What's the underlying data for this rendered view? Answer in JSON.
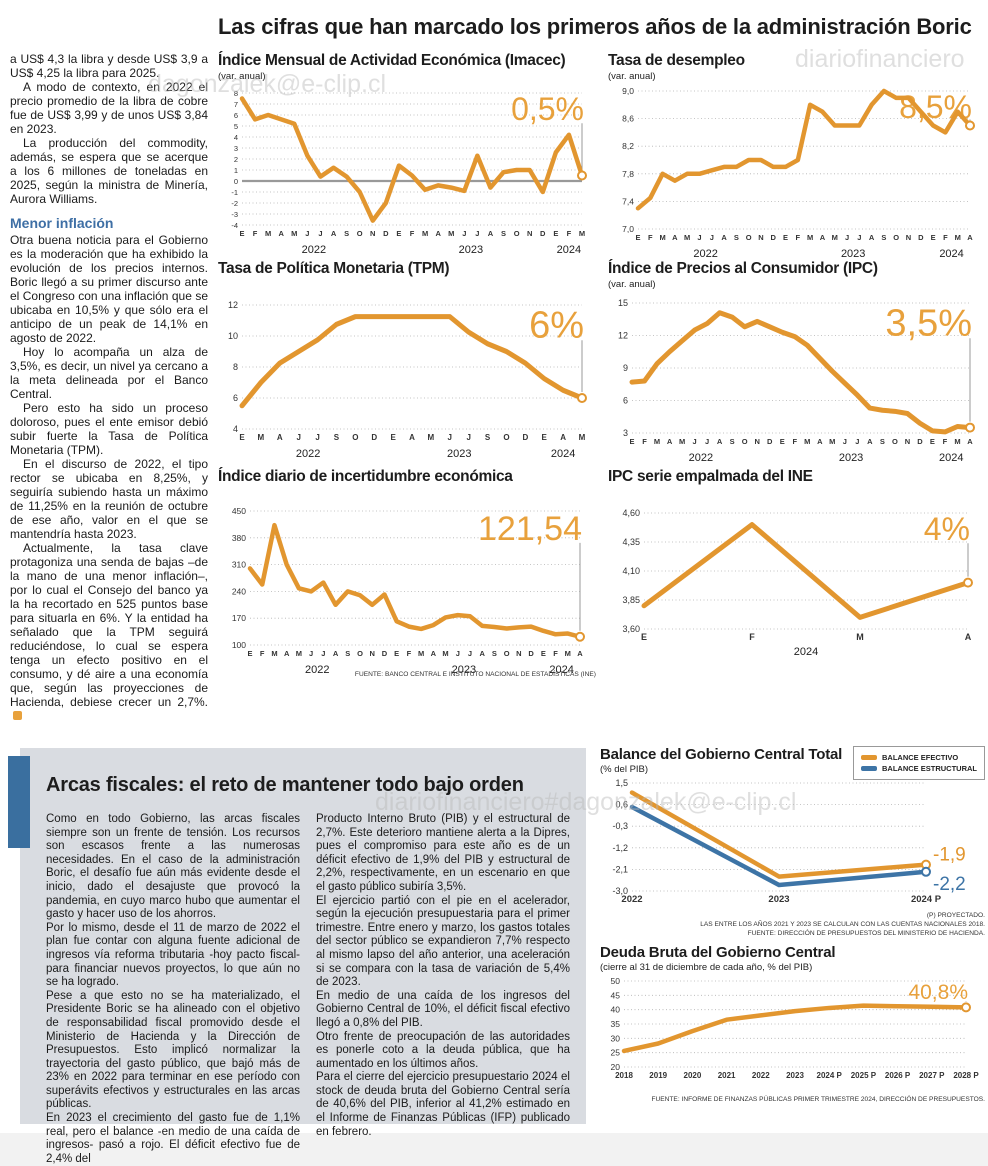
{
  "headline": "Las cifras que han marcado los primeros años de la administración Boric",
  "watermarks": {
    "wm1": "dagonzalek@e-clip.cl",
    "wm2": "diariofinanciero",
    "wm3": "diariofinanciero#dagonzalek@e-clip.cl"
  },
  "left_column": {
    "p1": "a US$ 4,3 la libra y desde US$ 3,9 a US$ 4,25 la libra para 2025.",
    "p2": "A modo de contexto, en 2022 el precio promedio de la libra de cobre fue de US$ 3,99 y de unos US$ 3,84 en 2023.",
    "p3": "La producción del commodity, además, se espera que se acerque a los 6 millones de toneladas en 2025, según la ministra de Minería, Aurora Williams.",
    "subhead": "Menor inflación",
    "p4": "Otra buena noticia para el Gobierno es la moderación que ha exhibido la evolución de los precios internos. Boric llegó a su primer discurso ante el Congreso con una inflación que se ubicaba en 10,5% y que sólo era el anticipo de un peak de 14,1% en agosto de 2022.",
    "p5": "Hoy lo acompaña un alza de 3,5%, es decir, un nivel ya cercano a la meta delineada por el Banco Central.",
    "p6": "Pero esto ha sido un proceso doloroso, pues el ente emisor debió subir fuerte la Tasa de Política Monetaria (TPM).",
    "p7": "En el discurso de 2022, el tipo rector se ubicaba en 8,25%, y seguiría subiendo hasta un máximo de 11,25% en la reunión de octubre de ese año, valor en el que se mantendría hasta 2023.",
    "p8": "Actualmente, la tasa clave protagoniza una senda de bajas –de la mano de una menor inflación–, por lo cual el Consejo del banco ya la ha recortado en 525 puntos base para situarla en 6%. Y la entidad ha señalado que la TPM seguirá reduciéndose, lo cual se espera tenga un efecto positivo en el consumo, y dé aire a una economía que, según las proyecciones de Hacienda, debiese crecer un 2,7%."
  },
  "sources": {
    "ine": "FUENTE: BANCO CENTRAL E INSTITUTO NACIONAL DE ESTADÍSTICAS (INE)"
  },
  "bottom": {
    "headline": "Arcas fiscales: el reto de mantener todo bajo orden",
    "col1": {
      "p1": "Como en todo Gobierno, las arcas fiscales siempre son un frente de tensión. Los recursos son escasos frente a las numerosas necesidades. En el caso de la administración Boric, el desafío fue aún más evidente desde el inicio, dado el desajuste que provocó la pandemia, en cuyo marco hubo que aumentar el gasto y hacer uso de los ahorros.",
      "p2": "Por lo mismo, desde el 11 de marzo de 2022 el plan fue contar con alguna fuente adicional de ingresos vía reforma tributaria -hoy pacto fiscal- para financiar nuevos proyectos, lo que aún no se ha logrado.",
      "p3": "Pese a que esto no se ha materializado, el Presidente Boric se ha alineado con el objetivo de responsabilidad fiscal promovido desde el Ministerio de Hacienda y la Dirección de Presupuestos. Esto implicó normalizar la trayectoria del gasto público, que bajó más de 23% en 2022 para terminar en ese período con superávits efectivos y estructurales en las arcas públicas.",
      "p4": "En 2023 el crecimiento del gasto fue de 1,1% real, pero el balance -en medio de una caída de ingresos-  pasó a rojo. El déficit efectivo fue de 2,4% del"
    },
    "col2": {
      "p1": "Producto Interno Bruto (PIB) y el estructural de 2,7%. Este deterioro mantiene alerta a la Dipres, pues el compromiso para este año es de un déficit efectivo de 1,9% del PIB y estructural de 2,2%, respectivamente, en un escenario en que el gasto público subiría 3,5%.",
      "p2": "El ejercicio partió con el pie en el acelerador, según la ejecución presupuestaria para el primer trimestre. Entre enero y marzo, los gastos totales del sector público se expandieron 7,7% respecto al mismo lapso del año anterior, una aceleración si se compara con la tasa de variación de 5,4% de 2023.",
      "p3": "En medio de una caída de los ingresos del Gobierno Central de 10%, el déficit fiscal efectivo llegó a 0,8% del PIB.",
      "p4": "Otro frente de preocupación de las autoridades es ponerle coto a la deuda pública, que ha aumentado en los últimos años.",
      "p5": "Para el cierre del ejercicio presupuestario 2024 el stock de deuda bruta del Gobierno Central sería de 40,6% del PIB, inferior al 41,2% estimado en el Informe de Finanzas Públicas (IFP) publicado en febrero."
    }
  },
  "chart_data": [
    {
      "id": "imacec",
      "type": "line",
      "title": "Índice Mensual de Actividad Económica (Imacec)",
      "subtitle": "(var. anual)",
      "ylim": [
        -4,
        8
      ],
      "ytick_vals": [
        8,
        7,
        6,
        5,
        4,
        3,
        2,
        1,
        0,
        -1,
        -2,
        -3,
        -4
      ],
      "ytick_labels": [
        "8",
        "7",
        "6",
        "5",
        "4",
        "3",
        "2",
        "1",
        "0",
        "-1",
        "-2",
        "-3",
        "-4"
      ],
      "x_labels": [
        "E",
        "F",
        "M",
        "A",
        "M",
        "J",
        "J",
        "A",
        "S",
        "O",
        "N",
        "D",
        "E",
        "F",
        "M",
        "A",
        "M",
        "J",
        "J",
        "A",
        "S",
        "O",
        "N",
        "D",
        "E",
        "F",
        "M"
      ],
      "years": [
        {
          "label": "2022",
          "from": 0,
          "to": 11
        },
        {
          "label": "2023",
          "from": 12,
          "to": 23
        },
        {
          "label": "2024",
          "from": 24,
          "to": 26
        }
      ],
      "zero_line": true,
      "series": [
        {
          "name": "Imacec",
          "color": "#e2962f",
          "values": [
            7.5,
            5.6,
            6.0,
            5.6,
            5.2,
            2.3,
            0.4,
            1.2,
            0.4,
            -1.0,
            -3.6,
            -2.0,
            1.4,
            0.5,
            -0.8,
            -0.4,
            -0.6,
            -0.9,
            2.3,
            -0.6,
            0.8,
            1.0,
            1.0,
            -1.0,
            2.6,
            4.2,
            0.5
          ]
        }
      ],
      "callout": {
        "text": "0,5%",
        "size": 32,
        "color": "#e8a13c"
      }
    },
    {
      "id": "desempleo",
      "type": "line",
      "title": "Tasa de desempleo",
      "subtitle": "(var. anual)",
      "ylim": [
        7.0,
        9.0
      ],
      "ytick_vals": [
        9.0,
        8.6,
        8.2,
        7.8,
        7.4,
        7.0
      ],
      "ytick_labels": [
        "9,0",
        "8,6",
        "8,2",
        "7,8",
        "7,4",
        "7,0"
      ],
      "x_labels": [
        "E",
        "F",
        "M",
        "A",
        "M",
        "J",
        "J",
        "A",
        "S",
        "O",
        "N",
        "D",
        "E",
        "F",
        "M",
        "A",
        "M",
        "J",
        "J",
        "A",
        "S",
        "O",
        "N",
        "D",
        "E",
        "F",
        "M",
        "A"
      ],
      "years": [
        {
          "label": "2022",
          "from": 0,
          "to": 11
        },
        {
          "label": "2023",
          "from": 12,
          "to": 23
        },
        {
          "label": "2024",
          "from": 24,
          "to": 27
        }
      ],
      "series": [
        {
          "name": "Tasa de desempleo",
          "color": "#e2962f",
          "values": [
            7.3,
            7.45,
            7.8,
            7.7,
            7.8,
            7.8,
            7.85,
            7.9,
            7.9,
            8.0,
            8.0,
            7.9,
            7.9,
            8.0,
            8.8,
            8.7,
            8.5,
            8.5,
            8.5,
            8.8,
            9.0,
            8.9,
            8.9,
            8.7,
            8.5,
            8.4,
            8.7,
            8.5
          ]
        }
      ],
      "callout": {
        "text": "8,5%",
        "size": 32,
        "color": "#e8a13c"
      }
    },
    {
      "id": "tpm",
      "type": "line",
      "title": "Tasa de Política Monetaria (TPM)",
      "subtitle": "",
      "ylim": [
        4,
        12
      ],
      "ytick_vals": [
        12,
        10,
        8,
        6,
        4
      ],
      "ytick_labels": [
        "12",
        "10",
        "8",
        "6",
        "4"
      ],
      "x_labels": [
        "E",
        "M",
        "A",
        "J",
        "J",
        "S",
        "O",
        "D",
        "E",
        "A",
        "M",
        "J",
        "J",
        "S",
        "O",
        "D",
        "E",
        "A",
        "M"
      ],
      "years": [
        {
          "label": "2022",
          "from": 0,
          "to": 7
        },
        {
          "label": "2023",
          "from": 8,
          "to": 15
        },
        {
          "label": "2024",
          "from": 16,
          "to": 18
        }
      ],
      "series": [
        {
          "name": "TPM",
          "color": "#e2962f",
          "values": [
            5.5,
            7.0,
            8.25,
            9.0,
            9.75,
            10.75,
            11.25,
            11.25,
            11.25,
            11.25,
            11.25,
            11.25,
            10.25,
            9.5,
            9.0,
            8.25,
            7.25,
            6.5,
            6.0
          ]
        }
      ],
      "callout": {
        "text": "6%",
        "size": 38,
        "color": "#e8a13c"
      }
    },
    {
      "id": "ipc",
      "type": "line",
      "title": "Índice de Precios al Consumidor (IPC)",
      "subtitle": "(var. anual)",
      "ylim": [
        3,
        15
      ],
      "ytick_vals": [
        15,
        12,
        9,
        6,
        3
      ],
      "ytick_labels": [
        "15",
        "12",
        "9",
        "6",
        "3"
      ],
      "x_labels": [
        "E",
        "F",
        "M",
        "A",
        "M",
        "J",
        "J",
        "A",
        "S",
        "O",
        "N",
        "D",
        "E",
        "F",
        "M",
        "A",
        "M",
        "J",
        "J",
        "A",
        "S",
        "O",
        "N",
        "D",
        "E",
        "F",
        "M",
        "A"
      ],
      "years": [
        {
          "label": "2022",
          "from": 0,
          "to": 11
        },
        {
          "label": "2023",
          "from": 12,
          "to": 23
        },
        {
          "label": "2024",
          "from": 24,
          "to": 27
        }
      ],
      "series": [
        {
          "name": "IPC",
          "color": "#e2962f",
          "values": [
            7.7,
            7.8,
            9.4,
            10.5,
            11.5,
            12.5,
            13.1,
            14.1,
            13.7,
            12.8,
            13.3,
            12.8,
            12.3,
            11.9,
            11.1,
            9.9,
            8.7,
            7.6,
            6.5,
            5.3,
            5.1,
            5.0,
            4.8,
            3.9,
            3.2,
            3.1,
            3.6,
            3.5
          ]
        }
      ],
      "callout": {
        "text": "3,5%",
        "size": 38,
        "color": "#e8a13c"
      }
    },
    {
      "id": "incert",
      "type": "line",
      "title": "Índice diario de incertidumbre económica",
      "subtitle": "",
      "ylim": [
        100,
        450
      ],
      "ytick_vals": [
        450,
        380,
        310,
        240,
        170,
        100
      ],
      "ytick_labels": [
        "450",
        "380",
        "310",
        "240",
        "170",
        "100"
      ],
      "x_labels": [
        "E",
        "F",
        "M",
        "A",
        "M",
        "J",
        "J",
        "A",
        "S",
        "O",
        "N",
        "D",
        "E",
        "F",
        "M",
        "A",
        "M",
        "J",
        "J",
        "A",
        "S",
        "O",
        "N",
        "D",
        "E",
        "F",
        "M",
        "A"
      ],
      "years": [
        {
          "label": "2022",
          "from": 0,
          "to": 11
        },
        {
          "label": "2023",
          "from": 12,
          "to": 23
        },
        {
          "label": "2024",
          "from": 24,
          "to": 27
        }
      ],
      "series": [
        {
          "name": "Incertidumbre económica",
          "color": "#e2962f",
          "values": [
            300,
            258,
            413,
            310,
            248,
            240,
            263,
            205,
            240,
            230,
            205,
            232,
            162,
            148,
            142,
            152,
            172,
            178,
            175,
            150,
            147,
            143,
            146,
            148,
            137,
            128,
            130,
            121.54
          ]
        }
      ],
      "callout": {
        "text": "121,54",
        "size": 34,
        "color": "#e8a13c"
      }
    },
    {
      "id": "empalmada",
      "type": "line",
      "title": "IPC serie empalmada del INE",
      "subtitle": "",
      "ylim": [
        3.6,
        4.6
      ],
      "ytick_vals": [
        4.6,
        4.35,
        4.1,
        3.85,
        3.6
      ],
      "ytick_labels": [
        "4,60",
        "4,35",
        "4,10",
        "3,85",
        "3,60"
      ],
      "x_labels": [
        "E",
        "F",
        "M",
        "A"
      ],
      "years": [
        {
          "label": "2024",
          "from": 0,
          "to": 3
        }
      ],
      "series": [
        {
          "name": "IPC serie empalmada",
          "color": "#e2962f",
          "values": [
            3.8,
            4.5,
            3.7,
            4.0
          ]
        }
      ],
      "callout": {
        "text": "4%",
        "size": 32,
        "color": "#e8a13c"
      }
    },
    {
      "id": "balance",
      "type": "line",
      "title": "Balance del Gobierno Central Total",
      "subtitle": "(% del PIB)",
      "ylim": [
        -3.0,
        1.5
      ],
      "ytick_vals": [
        1.5,
        0.6,
        -0.3,
        -1.2,
        -2.1,
        -3.0
      ],
      "ytick_labels": [
        "1,5",
        "0,6",
        "-0,3",
        "-1,2",
        "-2,1",
        "-3,0"
      ],
      "x_labels": [
        "2022",
        "2023",
        "2024 P"
      ],
      "series": [
        {
          "name": "BALANCE EFECTIVO",
          "color": "#e2962f",
          "values": [
            1.1,
            -2.4,
            -1.9
          ]
        },
        {
          "name": "BALANCE ESTRUCTURAL",
          "color": "#3d74a6",
          "values": [
            0.5,
            -2.75,
            -2.2
          ]
        }
      ],
      "legend": [
        {
          "label": "BALANCE EFECTIVO",
          "color": "#e2962f"
        },
        {
          "label": "BALANCE ESTRUCTURAL",
          "color": "#3d74a6"
        }
      ],
      "end_labels": [
        {
          "text": "-1,9",
          "dy": -4,
          "size": 19
        },
        {
          "text": "-2,2",
          "dy": 18,
          "size": 19
        }
      ],
      "notes": [
        "(P) PROYECTADO.",
        "LAS ENTRE LOS AÑOS 2021 Y 2023 SE CALCULAN  CON LAS CUENTAS NACIONALES 2018.",
        "FUENTE: DIRECCIÓN DE PRESUPUESTOS DEL MINISTERIO DE HACIENDA."
      ]
    },
    {
      "id": "deuda",
      "type": "line",
      "title": "Deuda Bruta del Gobierno Central",
      "subtitle": "(cierre al 31 de diciembre de cada año, % del PIB)",
      "ylim": [
        20,
        50
      ],
      "ytick_vals": [
        50,
        45,
        40,
        35,
        30,
        25,
        20
      ],
      "ytick_labels": [
        "50",
        "45",
        "40",
        "35",
        "30",
        "25",
        "20"
      ],
      "x_labels": [
        "2018",
        "2019",
        "2020",
        "2021",
        "2022",
        "2023",
        "2024 P",
        "2025 P",
        "2026 P",
        "2027 P",
        "2028 P"
      ],
      "series": [
        {
          "name": "Deuda bruta",
          "color": "#e2962f",
          "values": [
            25.6,
            28.2,
            32.5,
            36.5,
            38.0,
            39.5,
            40.6,
            41.4,
            41.2,
            41.0,
            40.8
          ]
        }
      ],
      "callout": {
        "text": "40,8%",
        "size": 21,
        "color": "#e8a13c"
      },
      "note": "FUENTE: INFORME DE FINANZAS PÚBLICAS PRIMER TRIMESTRE 2024, DIRECCIÓN DE PRESUPUESTOS."
    }
  ]
}
